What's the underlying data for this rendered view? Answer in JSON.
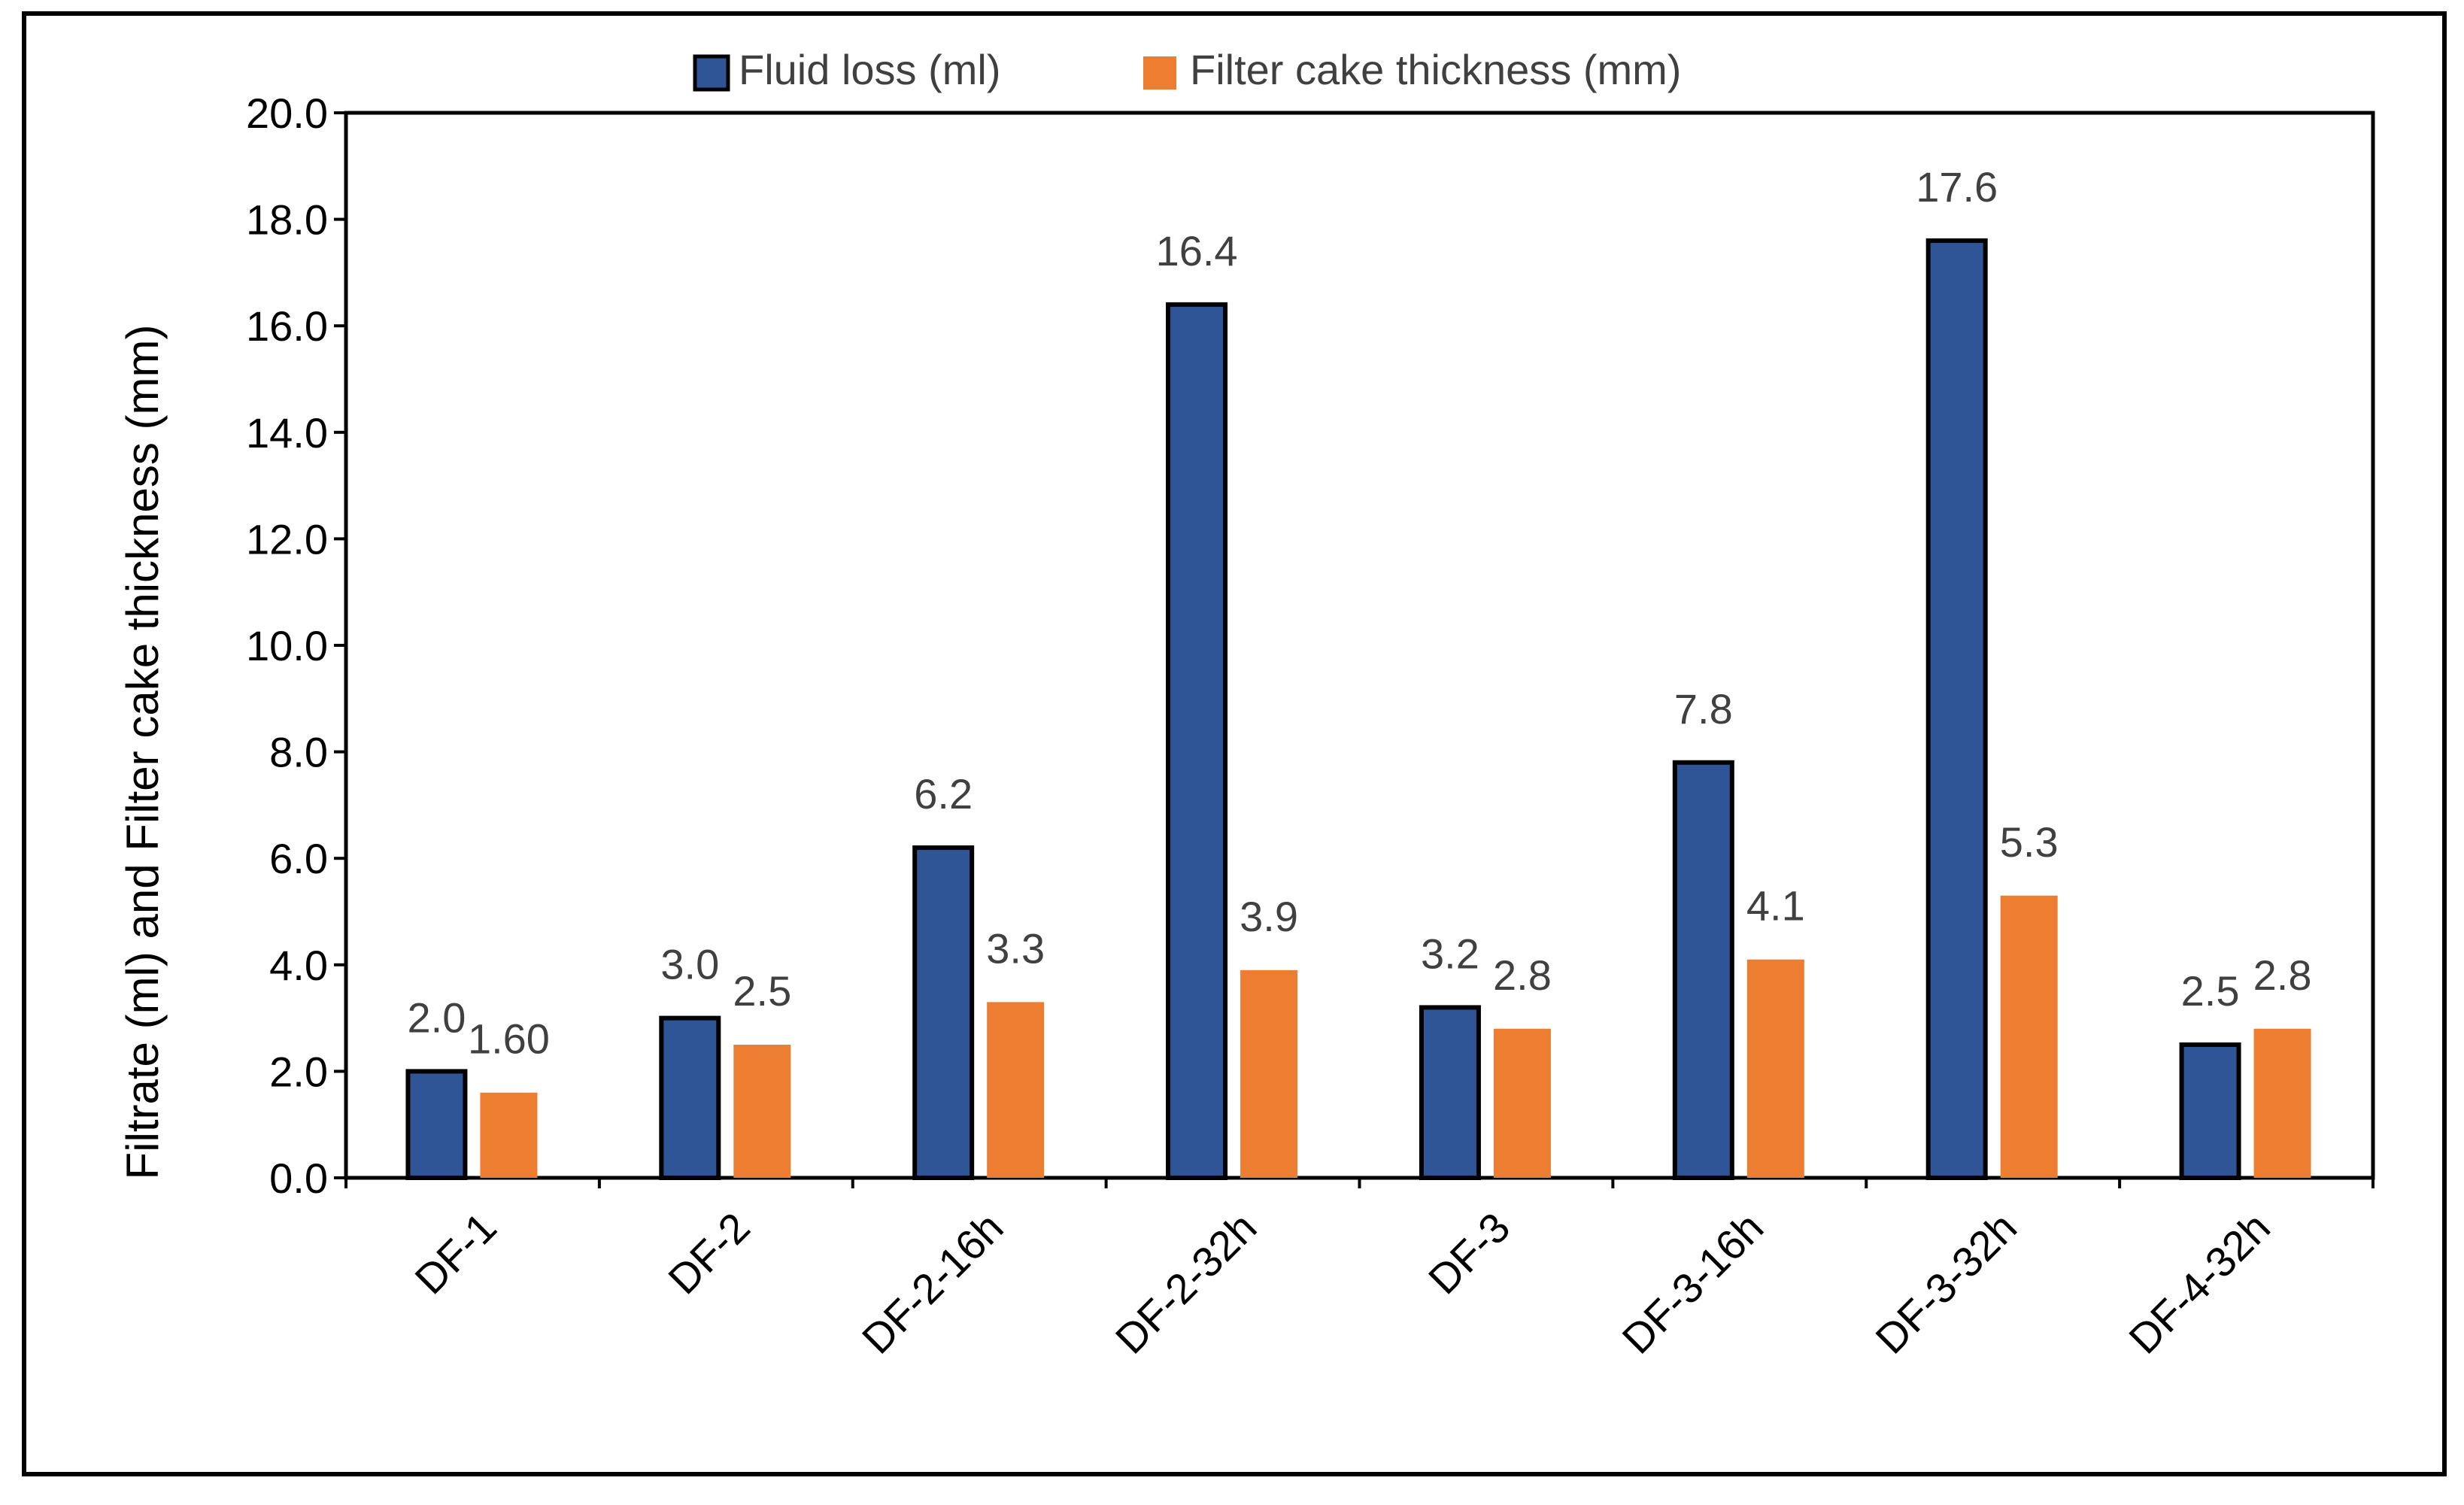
{
  "chart_data": {
    "type": "bar",
    "title": "",
    "xlabel": "",
    "ylabel": "Filtrate (ml) and Filter cake thickness (mm)",
    "ylim": [
      0,
      20
    ],
    "y_ticks": [
      "0.0",
      "2.0",
      "4.0",
      "6.0",
      "8.0",
      "10.0",
      "12.0",
      "14.0",
      "16.0",
      "18.0",
      "20.0"
    ],
    "legend_position": "top-center",
    "grid": false,
    "categories": [
      "DF-1",
      "DF-2",
      "DF-2-16h",
      "DF-2-32h",
      "DF-3",
      "DF-3-16h",
      "DF-3-32h",
      "DF-4-32h"
    ],
    "series": [
      {
        "name": "Fluid loss (ml)",
        "color": "#2F5597",
        "values": [
          2.0,
          3.0,
          6.2,
          16.4,
          3.2,
          7.8,
          17.6,
          2.5
        ],
        "labels": [
          "2.0",
          "3.0",
          "6.2",
          "16.4",
          "3.2",
          "7.8",
          "17.6",
          "2.5"
        ]
      },
      {
        "name": "Filter cake thickness (mm)",
        "color": "#ED7D31",
        "values": [
          1.6,
          2.5,
          3.3,
          3.9,
          2.8,
          4.1,
          5.3,
          2.8
        ],
        "labels": [
          "1.60",
          "2.5",
          "3.3",
          "3.9",
          "2.8",
          "4.1",
          "5.3",
          "2.8"
        ]
      }
    ]
  }
}
